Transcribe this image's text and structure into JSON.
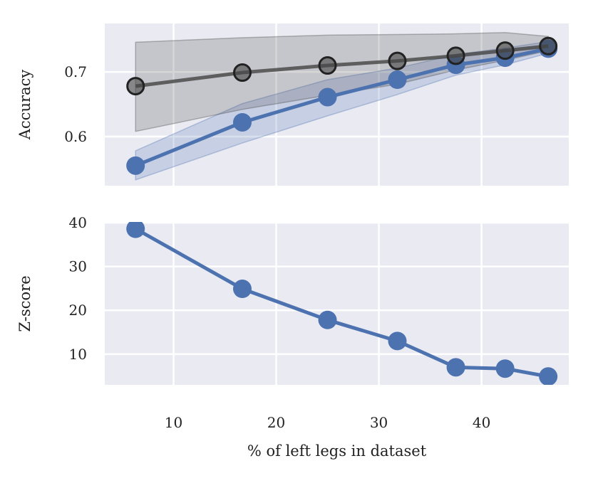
{
  "chart_data": [
    {
      "type": "line",
      "ylabel": "Accuracy",
      "xlabel": "",
      "xlim": [
        3.3,
        48.5
      ],
      "ylim": [
        0.524,
        0.775
      ],
      "xticks": [
        10,
        20,
        30,
        40
      ],
      "xtick_labels": [
        "",
        "",
        "",
        ""
      ],
      "yticks": [
        0.6,
        0.7
      ],
      "ytick_labels": [
        "0.6",
        "0.7"
      ],
      "grid": true,
      "series": [
        {
          "color": "#4c72b0",
          "x": [
            6.3,
            16.7,
            25.0,
            31.8,
            37.5,
            42.3,
            46.5
          ],
          "y": [
            0.555,
            0.622,
            0.661,
            0.688,
            0.711,
            0.722,
            0.736
          ],
          "band_low": [
            0.533,
            0.59,
            0.632,
            0.665,
            0.695,
            0.711,
            0.729
          ],
          "band_high": [
            0.578,
            0.651,
            0.688,
            0.706,
            0.727,
            0.737,
            0.747
          ]
        },
        {
          "color": "#444444",
          "x": [
            6.3,
            16.7,
            25.0,
            31.8,
            37.5,
            42.3,
            46.5
          ],
          "y": [
            0.678,
            0.699,
            0.71,
            0.717,
            0.725,
            0.733,
            0.74
          ],
          "band_low": [
            0.608,
            0.642,
            0.664,
            0.681,
            0.703,
            0.718,
            0.733
          ],
          "band_high": [
            0.746,
            0.753,
            0.757,
            0.758,
            0.759,
            0.761,
            0.755
          ]
        }
      ]
    },
    {
      "type": "line",
      "ylabel": "Z-score",
      "xlabel": "% of left legs in dataset",
      "xlim": [
        3.3,
        48.5
      ],
      "ylim": [
        3.0,
        40.0
      ],
      "xticks": [
        10,
        20,
        30,
        40
      ],
      "xtick_labels": [
        "10",
        "20",
        "30",
        "40"
      ],
      "yticks": [
        10,
        20,
        30,
        40
      ],
      "ytick_labels": [
        "10",
        "20",
        "30",
        "40"
      ],
      "grid": true,
      "series": [
        {
          "color": "#4c72b0",
          "x": [
            6.3,
            16.7,
            25.0,
            31.8,
            37.5,
            42.3,
            46.5
          ],
          "y": [
            38.6,
            24.9,
            17.8,
            13.0,
            7.0,
            6.7,
            4.9
          ]
        }
      ]
    }
  ]
}
